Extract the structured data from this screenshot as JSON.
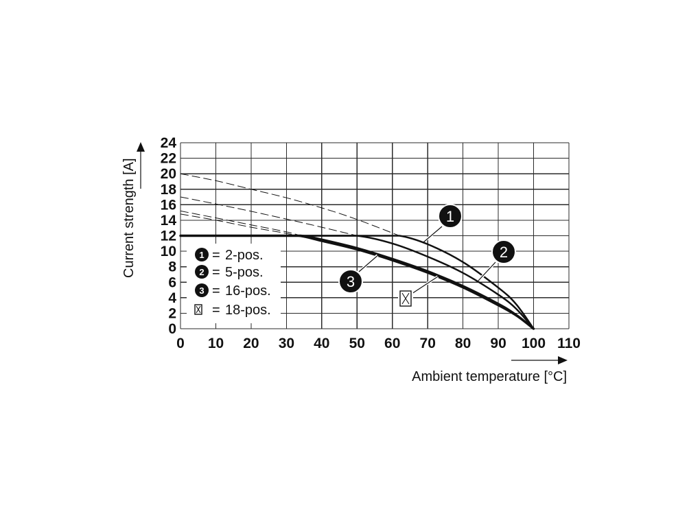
{
  "chart_data": {
    "type": "line",
    "xlabel": "Ambient temperature [°C]",
    "ylabel": "Current strength [A]",
    "xlim": [
      0,
      110
    ],
    "ylim": [
      0,
      24
    ],
    "x_ticks": [
      0,
      10,
      20,
      30,
      40,
      50,
      60,
      70,
      80,
      90,
      100,
      110
    ],
    "y_ticks": [
      0,
      2,
      4,
      6,
      8,
      10,
      12,
      14,
      16,
      18,
      20,
      22,
      24
    ],
    "grid": true,
    "legend": {
      "placement": "bottom-left",
      "separator": "="
    },
    "series": [
      {
        "name": "2-pos.",
        "marker": "1",
        "x": [
          0,
          62,
          70,
          80,
          90,
          95,
          100
        ],
        "y": [
          12,
          12,
          10.9,
          8.6,
          5.3,
          3.2,
          0
        ],
        "dashed": {
          "x": [
            0,
            10,
            20,
            30,
            40,
            50,
            62
          ],
          "y": [
            20,
            19.1,
            18.0,
            16.9,
            15.6,
            14.1,
            12
          ]
        }
      },
      {
        "name": "5-pos.",
        "marker": "2",
        "x": [
          0,
          50,
          60,
          70,
          80,
          90,
          95,
          100
        ],
        "y": [
          12,
          12,
          11.0,
          9.3,
          7.2,
          4.4,
          2.6,
          0
        ],
        "dashed": {
          "x": [
            0,
            10,
            20,
            30,
            40,
            50
          ],
          "y": [
            17.0,
            16.1,
            15.15,
            14.15,
            13.1,
            12
          ]
        }
      },
      {
        "name": "16-pos.",
        "marker": "3",
        "x": [
          0,
          34,
          40,
          50,
          60,
          70,
          80,
          90,
          95,
          100
        ],
        "y": [
          12,
          12,
          11.5,
          10.4,
          9.0,
          7.4,
          5.5,
          3.2,
          1.8,
          0
        ],
        "dashed": {
          "x": [
            0,
            10,
            20,
            30,
            34
          ],
          "y": [
            15.2,
            14.3,
            13.4,
            12.5,
            12
          ]
        }
      },
      {
        "name": "18-pos.",
        "marker_icon": "crossed-box-icon",
        "x": [
          0,
          33,
          40,
          50,
          60,
          70,
          80,
          90,
          95,
          100
        ],
        "y": [
          12,
          12,
          11.3,
          10.2,
          8.8,
          7.2,
          5.3,
          3.0,
          1.7,
          0
        ],
        "dashed": {
          "x": [
            0,
            10,
            20,
            30,
            33
          ],
          "y": [
            14.8,
            14.0,
            13.1,
            12.3,
            12
          ]
        }
      }
    ]
  }
}
